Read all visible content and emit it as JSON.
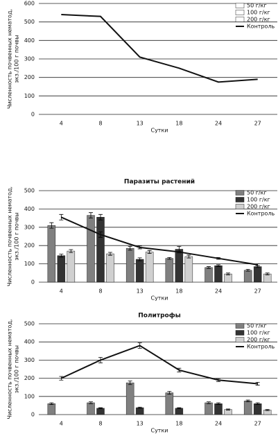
{
  "chart_data": [
    {
      "type": "bar",
      "categories": [
        "4",
        "8",
        "13",
        "18",
        "24",
        "27"
      ],
      "x_label": "Сутки",
      "y_label": [
        "Численность почвенных нематод,",
        "экз./100 г почвы"
      ],
      "ylim": [
        0,
        600
      ],
      "yticks": [
        0,
        100,
        200,
        300,
        400,
        500,
        600
      ],
      "grid": true,
      "series": [
        {
          "name": "50 г/кг",
          "mark": "bar",
          "color": "#ffffff",
          "values": [
            null,
            null,
            null,
            null,
            null,
            null
          ]
        },
        {
          "name": "100 г/кг",
          "mark": "bar",
          "color": "#ffffff",
          "values": [
            null,
            null,
            null,
            null,
            null,
            null
          ]
        },
        {
          "name": "200 г/кг",
          "mark": "bar",
          "color": "#ffffff",
          "values": [
            null,
            null,
            null,
            null,
            null,
            null
          ]
        },
        {
          "name": "Контроль",
          "mark": "line",
          "color": "#111111",
          "values": [
            540,
            530,
            310,
            250,
            175,
            190
          ]
        }
      ]
    },
    {
      "type": "bar",
      "title": "Паразиты растений",
      "categories": [
        "4",
        "8",
        "13",
        "18",
        "24",
        "27"
      ],
      "x_label": "Сутки",
      "y_label": [
        "Численность почвенных нематод,",
        "экз./100 г почвы"
      ],
      "ylim": [
        0,
        500
      ],
      "yticks": [
        0,
        100,
        200,
        300,
        400,
        500
      ],
      "grid": true,
      "series": [
        {
          "name": "50 г/кг",
          "mark": "bar",
          "color": "#808080",
          "values": [
            310,
            365,
            185,
            130,
            80,
            65
          ],
          "errors": [
            15,
            15,
            10,
            5,
            5,
            5
          ]
        },
        {
          "name": "100 г/кг",
          "mark": "bar",
          "color": "#333333",
          "values": [
            145,
            355,
            125,
            180,
            90,
            85
          ],
          "errors": [
            8,
            15,
            8,
            15,
            5,
            5
          ]
        },
        {
          "name": "200 г/кг",
          "mark": "bar",
          "color": "#d0d0d0",
          "values": [
            170,
            155,
            165,
            140,
            45,
            45
          ],
          "errors": [
            8,
            8,
            8,
            8,
            5,
            5
          ]
        },
        {
          "name": "Контроль",
          "mark": "line",
          "color": "#111111",
          "values": [
            355,
            260,
            190,
            165,
            130,
            95
          ],
          "errors": [
            15,
            15,
            8,
            5,
            5,
            5
          ]
        }
      ]
    },
    {
      "type": "bar",
      "title": "Политрофы",
      "categories": [
        "4",
        "8",
        "13",
        "18",
        "24",
        "27"
      ],
      "x_label": "Сутки",
      "y_label": [
        "Численность почвенных нематод,",
        "экз./100 г почвы"
      ],
      "ylim": [
        0,
        500
      ],
      "yticks": [
        0,
        100,
        200,
        300,
        400,
        500
      ],
      "grid": true,
      "series": [
        {
          "name": "50 г/кг",
          "mark": "bar",
          "color": "#808080",
          "values": [
            60,
            65,
            175,
            120,
            65,
            75
          ],
          "errors": [
            5,
            5,
            10,
            8,
            5,
            5
          ]
        },
        {
          "name": "100 г/кг",
          "mark": "bar",
          "color": "#333333",
          "values": [
            null,
            35,
            38,
            35,
            60,
            60
          ],
          "errors": [
            null,
            3,
            3,
            3,
            5,
            5
          ]
        },
        {
          "name": "200 г/кг",
          "mark": "bar",
          "color": "#d0d0d0",
          "values": [
            null,
            null,
            null,
            null,
            28,
            25
          ],
          "errors": [
            null,
            null,
            null,
            null,
            3,
            3
          ]
        },
        {
          "name": "Контроль",
          "mark": "line",
          "color": "#111111",
          "values": [
            200,
            300,
            380,
            245,
            190,
            170
          ],
          "errors": [
            10,
            15,
            15,
            10,
            8,
            8
          ]
        }
      ]
    }
  ]
}
